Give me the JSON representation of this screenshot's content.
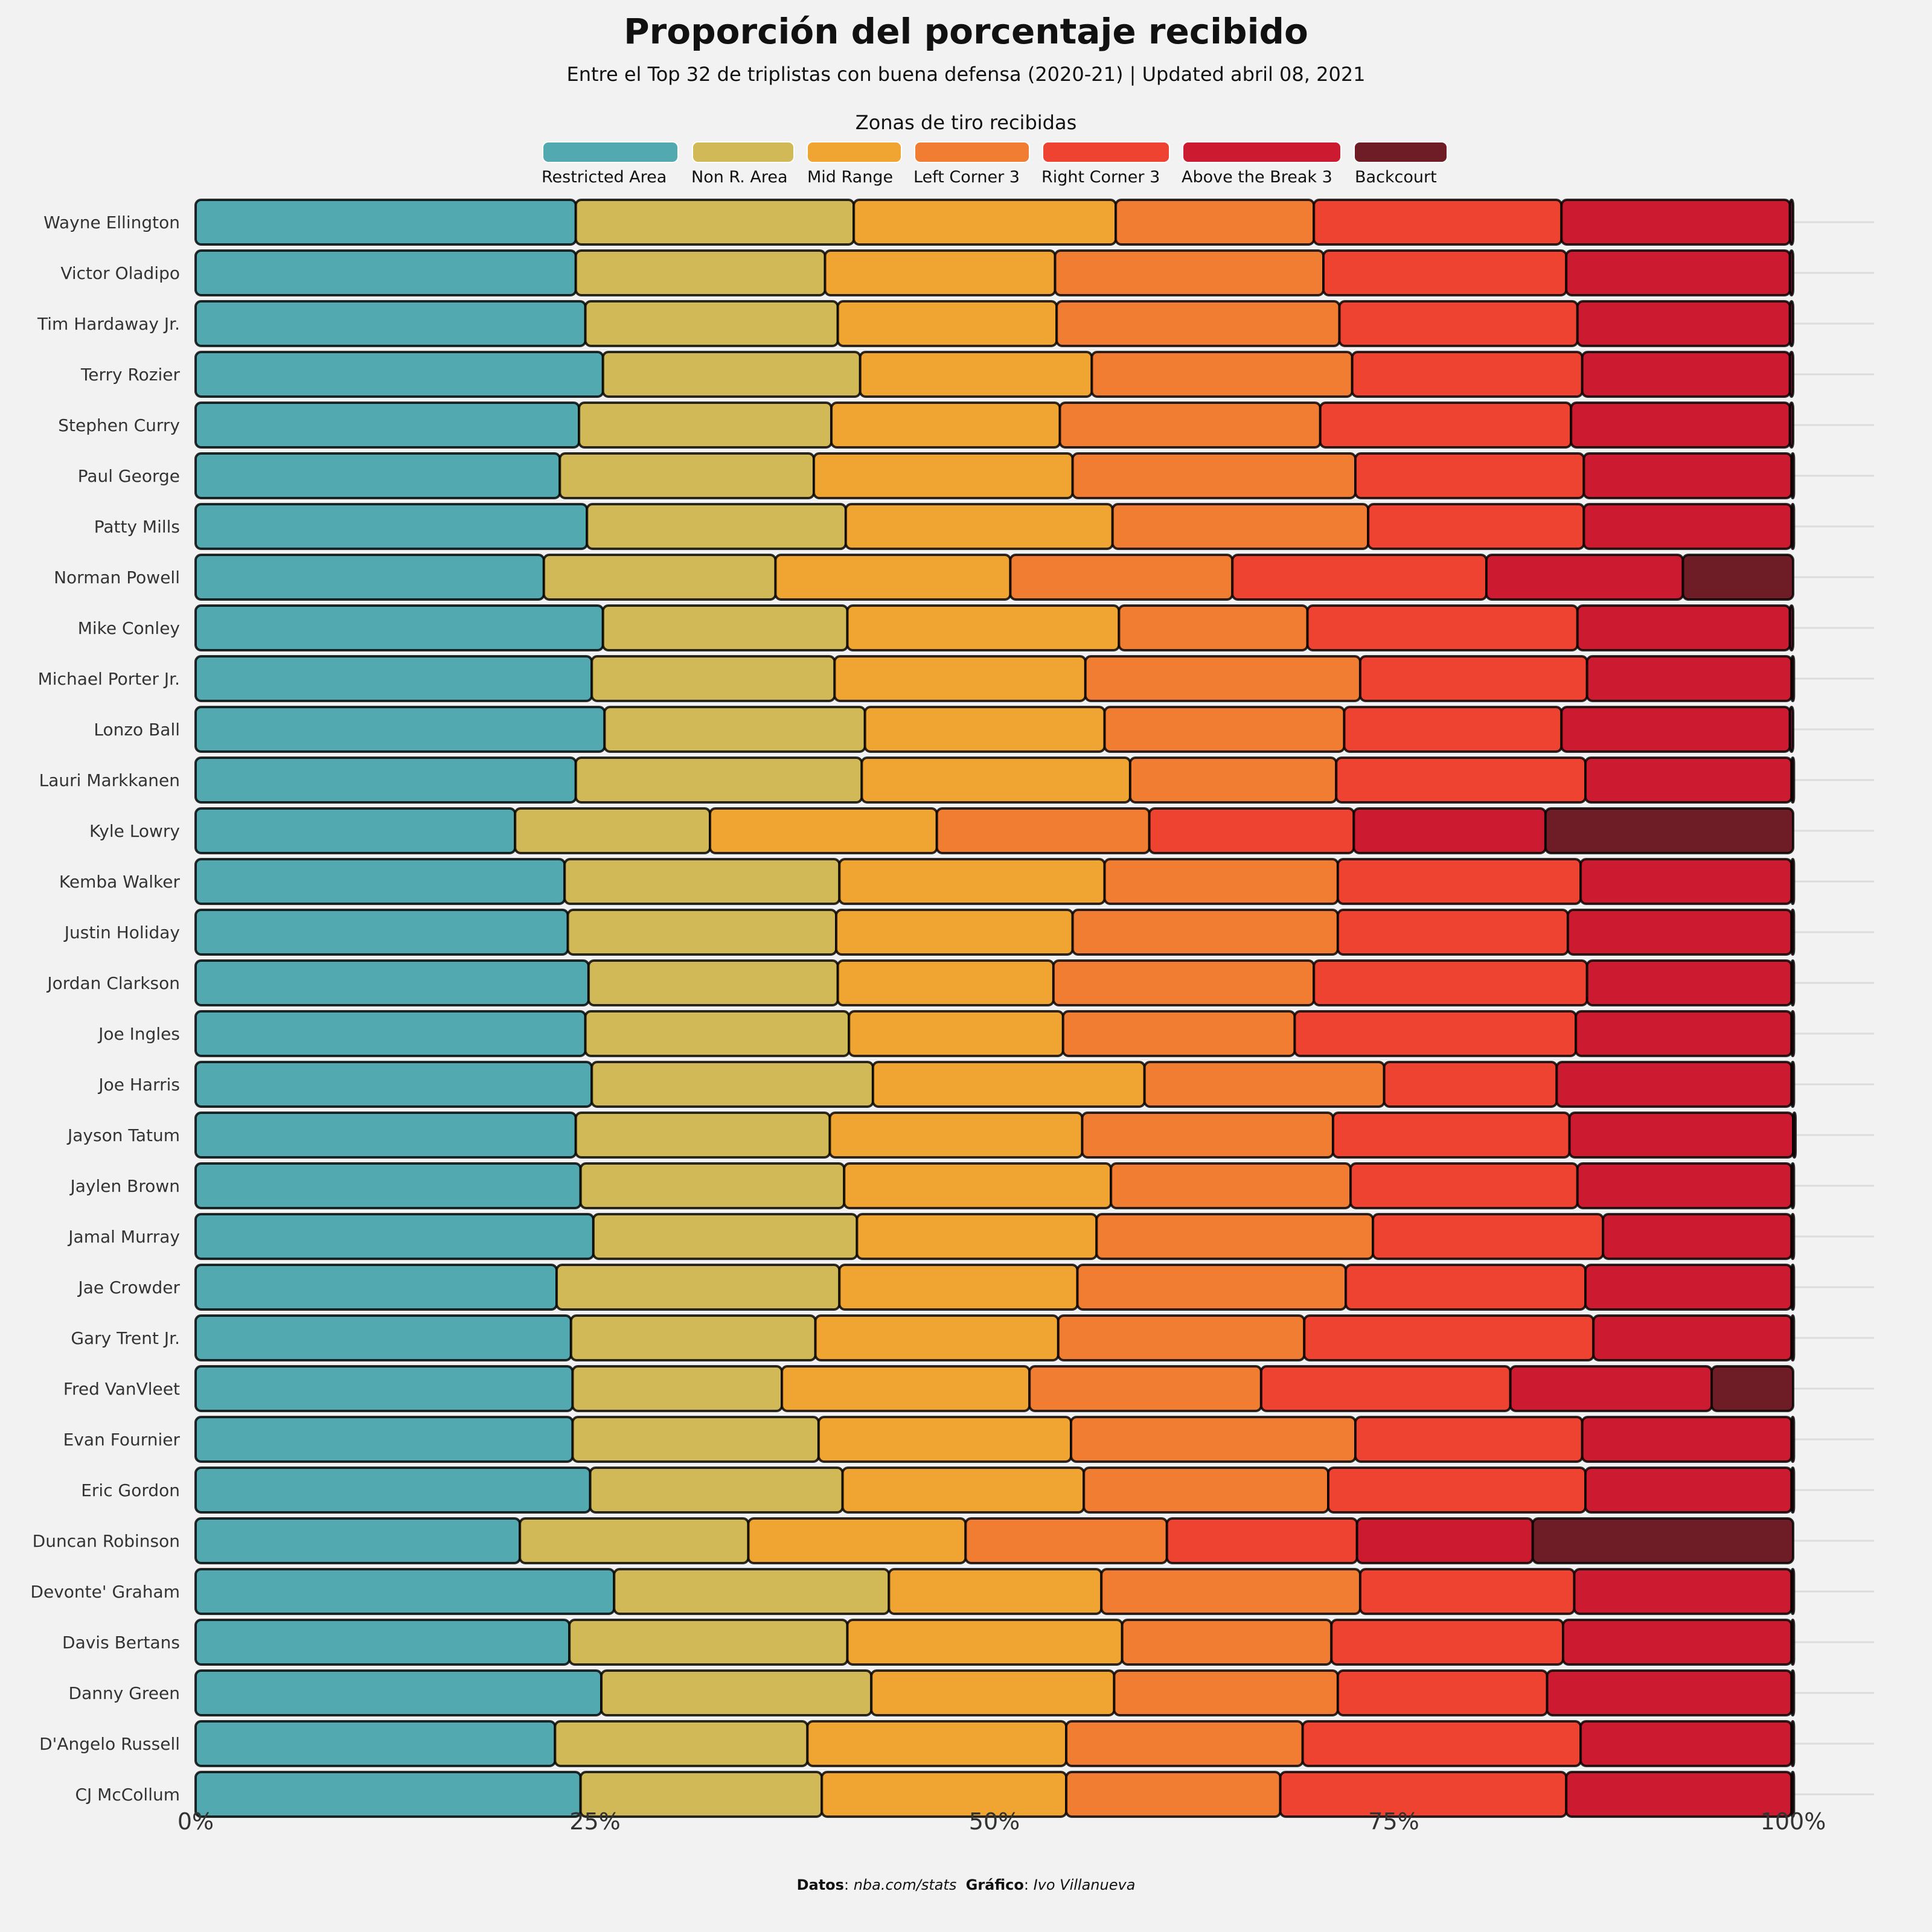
{
  "title": "Proporción del porcentaje recibido",
  "subtitle": "Entre el Top 32 de triplistas con buena defensa  (2020-21) | Updated abril 08, 2021",
  "caption": {
    "datos_label": "Datos",
    "datos_value": "nba.com/stats",
    "grafico_label": "Gráfico",
    "grafico_value": "Ivo Villanueva"
  },
  "colors": {
    "background": "#f2f2f2",
    "Restricted Area": "#52a9af",
    "Non R. Area": "#d0b956",
    "Mid Range": "#f0a431",
    "Left Corner 3": "#f07d32",
    "Right Corner 3": "#ef4331",
    "Above the Break 3": "#cc1a30",
    "Backcourt": "#6e1c26"
  },
  "chart_data": {
    "type": "bar",
    "orientation": "horizontal",
    "stacked": "percent",
    "legend_title": "Zonas de tiro recibidas",
    "legend_position": "top",
    "xlim": [
      0,
      100
    ],
    "xticks": [
      "0%",
      "25%",
      "50%",
      "75%",
      "100%"
    ],
    "series_names": [
      "Restricted Area",
      "Non R. Area",
      "Mid Range",
      "Left Corner 3",
      "Right Corner 3",
      "Above the Break 3",
      "Backcourt"
    ],
    "categories": [
      "Wayne Ellington",
      "Victor Oladipo",
      "Tim Hardaway Jr.",
      "Terry Rozier",
      "Stephen Curry",
      "Paul George",
      "Patty Mills",
      "Norman Powell",
      "Mike Conley",
      "Michael Porter Jr.",
      "Lonzo Ball",
      "Lauri Markkanen",
      "Kyle Lowry",
      "Kemba Walker",
      "Justin Holiday",
      "Jordan Clarkson",
      "Joe Ingles",
      "Joe Harris",
      "Jayson Tatum",
      "Jaylen Brown",
      "Jamal Murray",
      "Jae Crowder",
      "Gary Trent Jr.",
      "Fred VanVleet",
      "Evan Fournier",
      "Eric Gordon",
      "Duncan Robinson",
      "Devonte' Graham",
      "Davis Bertans",
      "Danny Green",
      "D'Angelo Russell",
      "CJ McCollum"
    ],
    "values": [
      [
        23.8,
        17.4,
        16.4,
        12.4,
        15.5,
        14.3,
        0.2
      ],
      [
        23.8,
        15.6,
        14.4,
        16.8,
        15.2,
        14.0,
        0.2
      ],
      [
        24.4,
        15.8,
        13.7,
        17.7,
        14.9,
        13.3,
        0.2
      ],
      [
        25.5,
        16.1,
        14.5,
        16.3,
        14.4,
        13.0,
        0.2
      ],
      [
        24.0,
        15.8,
        14.3,
        16.3,
        15.7,
        13.7,
        0.2
      ],
      [
        22.8,
        15.9,
        16.2,
        17.7,
        14.3,
        13.0,
        0.1
      ],
      [
        24.5,
        16.2,
        16.7,
        16.0,
        13.5,
        13.0,
        0.1
      ],
      [
        21.8,
        14.5,
        14.7,
        13.9,
        15.9,
        12.3,
        6.9
      ],
      [
        25.5,
        15.3,
        17.0,
        11.8,
        16.9,
        13.3,
        0.2
      ],
      [
        24.8,
        15.2,
        15.7,
        17.2,
        14.2,
        12.8,
        0.1
      ],
      [
        25.6,
        16.3,
        15.0,
        15.0,
        13.6,
        14.3,
        0.2
      ],
      [
        23.8,
        17.9,
        16.8,
        12.9,
        15.6,
        12.9,
        0.1
      ],
      [
        20.0,
        12.2,
        14.2,
        13.3,
        12.8,
        12.0,
        15.5
      ],
      [
        23.1,
        17.2,
        16.6,
        14.6,
        15.2,
        13.2,
        0.1
      ],
      [
        23.3,
        16.8,
        14.8,
        16.6,
        14.4,
        14.0,
        0.1
      ],
      [
        24.6,
        15.6,
        13.5,
        16.3,
        17.1,
        12.8,
        0.1
      ],
      [
        24.4,
        16.5,
        13.4,
        14.5,
        17.6,
        13.5,
        0.1
      ],
      [
        24.8,
        17.6,
        17.0,
        15.0,
        10.8,
        14.7,
        0.1
      ],
      [
        23.8,
        15.9,
        15.8,
        15.7,
        14.8,
        14.0,
        0.0
      ],
      [
        24.1,
        16.5,
        16.7,
        15.0,
        14.2,
        13.4,
        0.1
      ],
      [
        24.9,
        16.5,
        15.0,
        17.3,
        14.4,
        11.8,
        0.1
      ],
      [
        22.6,
        17.7,
        14.9,
        16.8,
        15.0,
        12.9,
        0.1
      ],
      [
        23.5,
        15.3,
        15.2,
        15.4,
        18.1,
        12.4,
        0.1
      ],
      [
        23.6,
        13.1,
        15.5,
        14.5,
        15.6,
        12.6,
        5.1
      ],
      [
        23.6,
        15.4,
        15.8,
        17.8,
        14.2,
        13.1,
        0.1
      ],
      [
        24.7,
        15.8,
        15.1,
        15.3,
        16.1,
        12.9,
        0.1
      ],
      [
        20.3,
        14.3,
        13.6,
        12.6,
        11.9,
        11.0,
        16.3
      ],
      [
        26.2,
        17.2,
        13.3,
        16.2,
        13.4,
        13.6,
        0.1
      ],
      [
        23.4,
        17.4,
        17.2,
        13.1,
        14.5,
        14.3,
        0.1
      ],
      [
        25.4,
        16.9,
        15.2,
        14.0,
        13.1,
        15.3,
        0.1
      ],
      [
        22.5,
        15.8,
        16.2,
        14.8,
        17.4,
        13.2,
        0.1
      ],
      [
        24.1,
        15.1,
        15.3,
        13.4,
        17.9,
        14.1,
        0.1
      ]
    ]
  }
}
